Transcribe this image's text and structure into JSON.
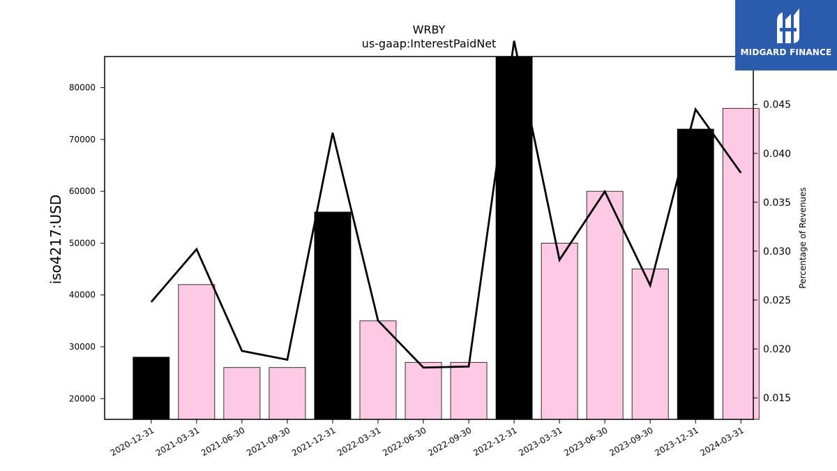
{
  "chart_data": {
    "type": "bar",
    "title": "WRBY",
    "subtitle": "us-gaap:InterestPaidNet",
    "ylabel": "iso4217:USD",
    "y2label": "Percentage of Revenues",
    "categories": [
      "2020-12-31",
      "2021-03-31",
      "2021-06-30",
      "2021-09-30",
      "2021-12-31",
      "2022-03-31",
      "2022-06-30",
      "2022-09-30",
      "2022-12-31",
      "2023-03-31",
      "2023-06-30",
      "2023-09-30",
      "2023-12-31",
      "2024-03-31"
    ],
    "values": [
      28000,
      42000,
      26000,
      26000,
      56000,
      35000,
      27000,
      27000,
      86000,
      50000,
      60000,
      45000,
      72000,
      76000
    ],
    "bar_colors": [
      "#000000",
      "#fdc9e4",
      "#fdc9e4",
      "#fdc9e4",
      "#000000",
      "#fdc9e4",
      "#fdc9e4",
      "#fdc9e4",
      "#000000",
      "#fdc9e4",
      "#fdc9e4",
      "#fdc9e4",
      "#000000",
      "#fdc9e4"
    ],
    "line_values": [
      0.0248,
      0.0302,
      0.0198,
      0.0189,
      0.0421,
      0.0229,
      0.0181,
      0.0182,
      0.0515,
      0.0291,
      0.0361,
      0.0265,
      0.0445,
      0.038
    ],
    "ylim": [
      16000,
      86000
    ],
    "y2lim": [
      0.0128,
      0.0499
    ],
    "yticks": [
      20000,
      30000,
      40000,
      50000,
      60000,
      70000,
      80000
    ],
    "y2ticks": [
      0.015,
      0.02,
      0.025,
      0.03,
      0.035,
      0.04,
      0.045
    ],
    "y2tick_labels": [
      "0.015",
      "0.020",
      "0.025",
      "0.030",
      "0.035",
      "0.040",
      "0.045"
    ],
    "grid": false,
    "colors": {
      "accent_bar": "#000000",
      "bar": "#fdc9e4",
      "line": "#000000"
    }
  },
  "logo": {
    "text": "MIDGARD FINANCE",
    "icon": "midgard-logo-icon",
    "background": "#2b5bad"
  }
}
